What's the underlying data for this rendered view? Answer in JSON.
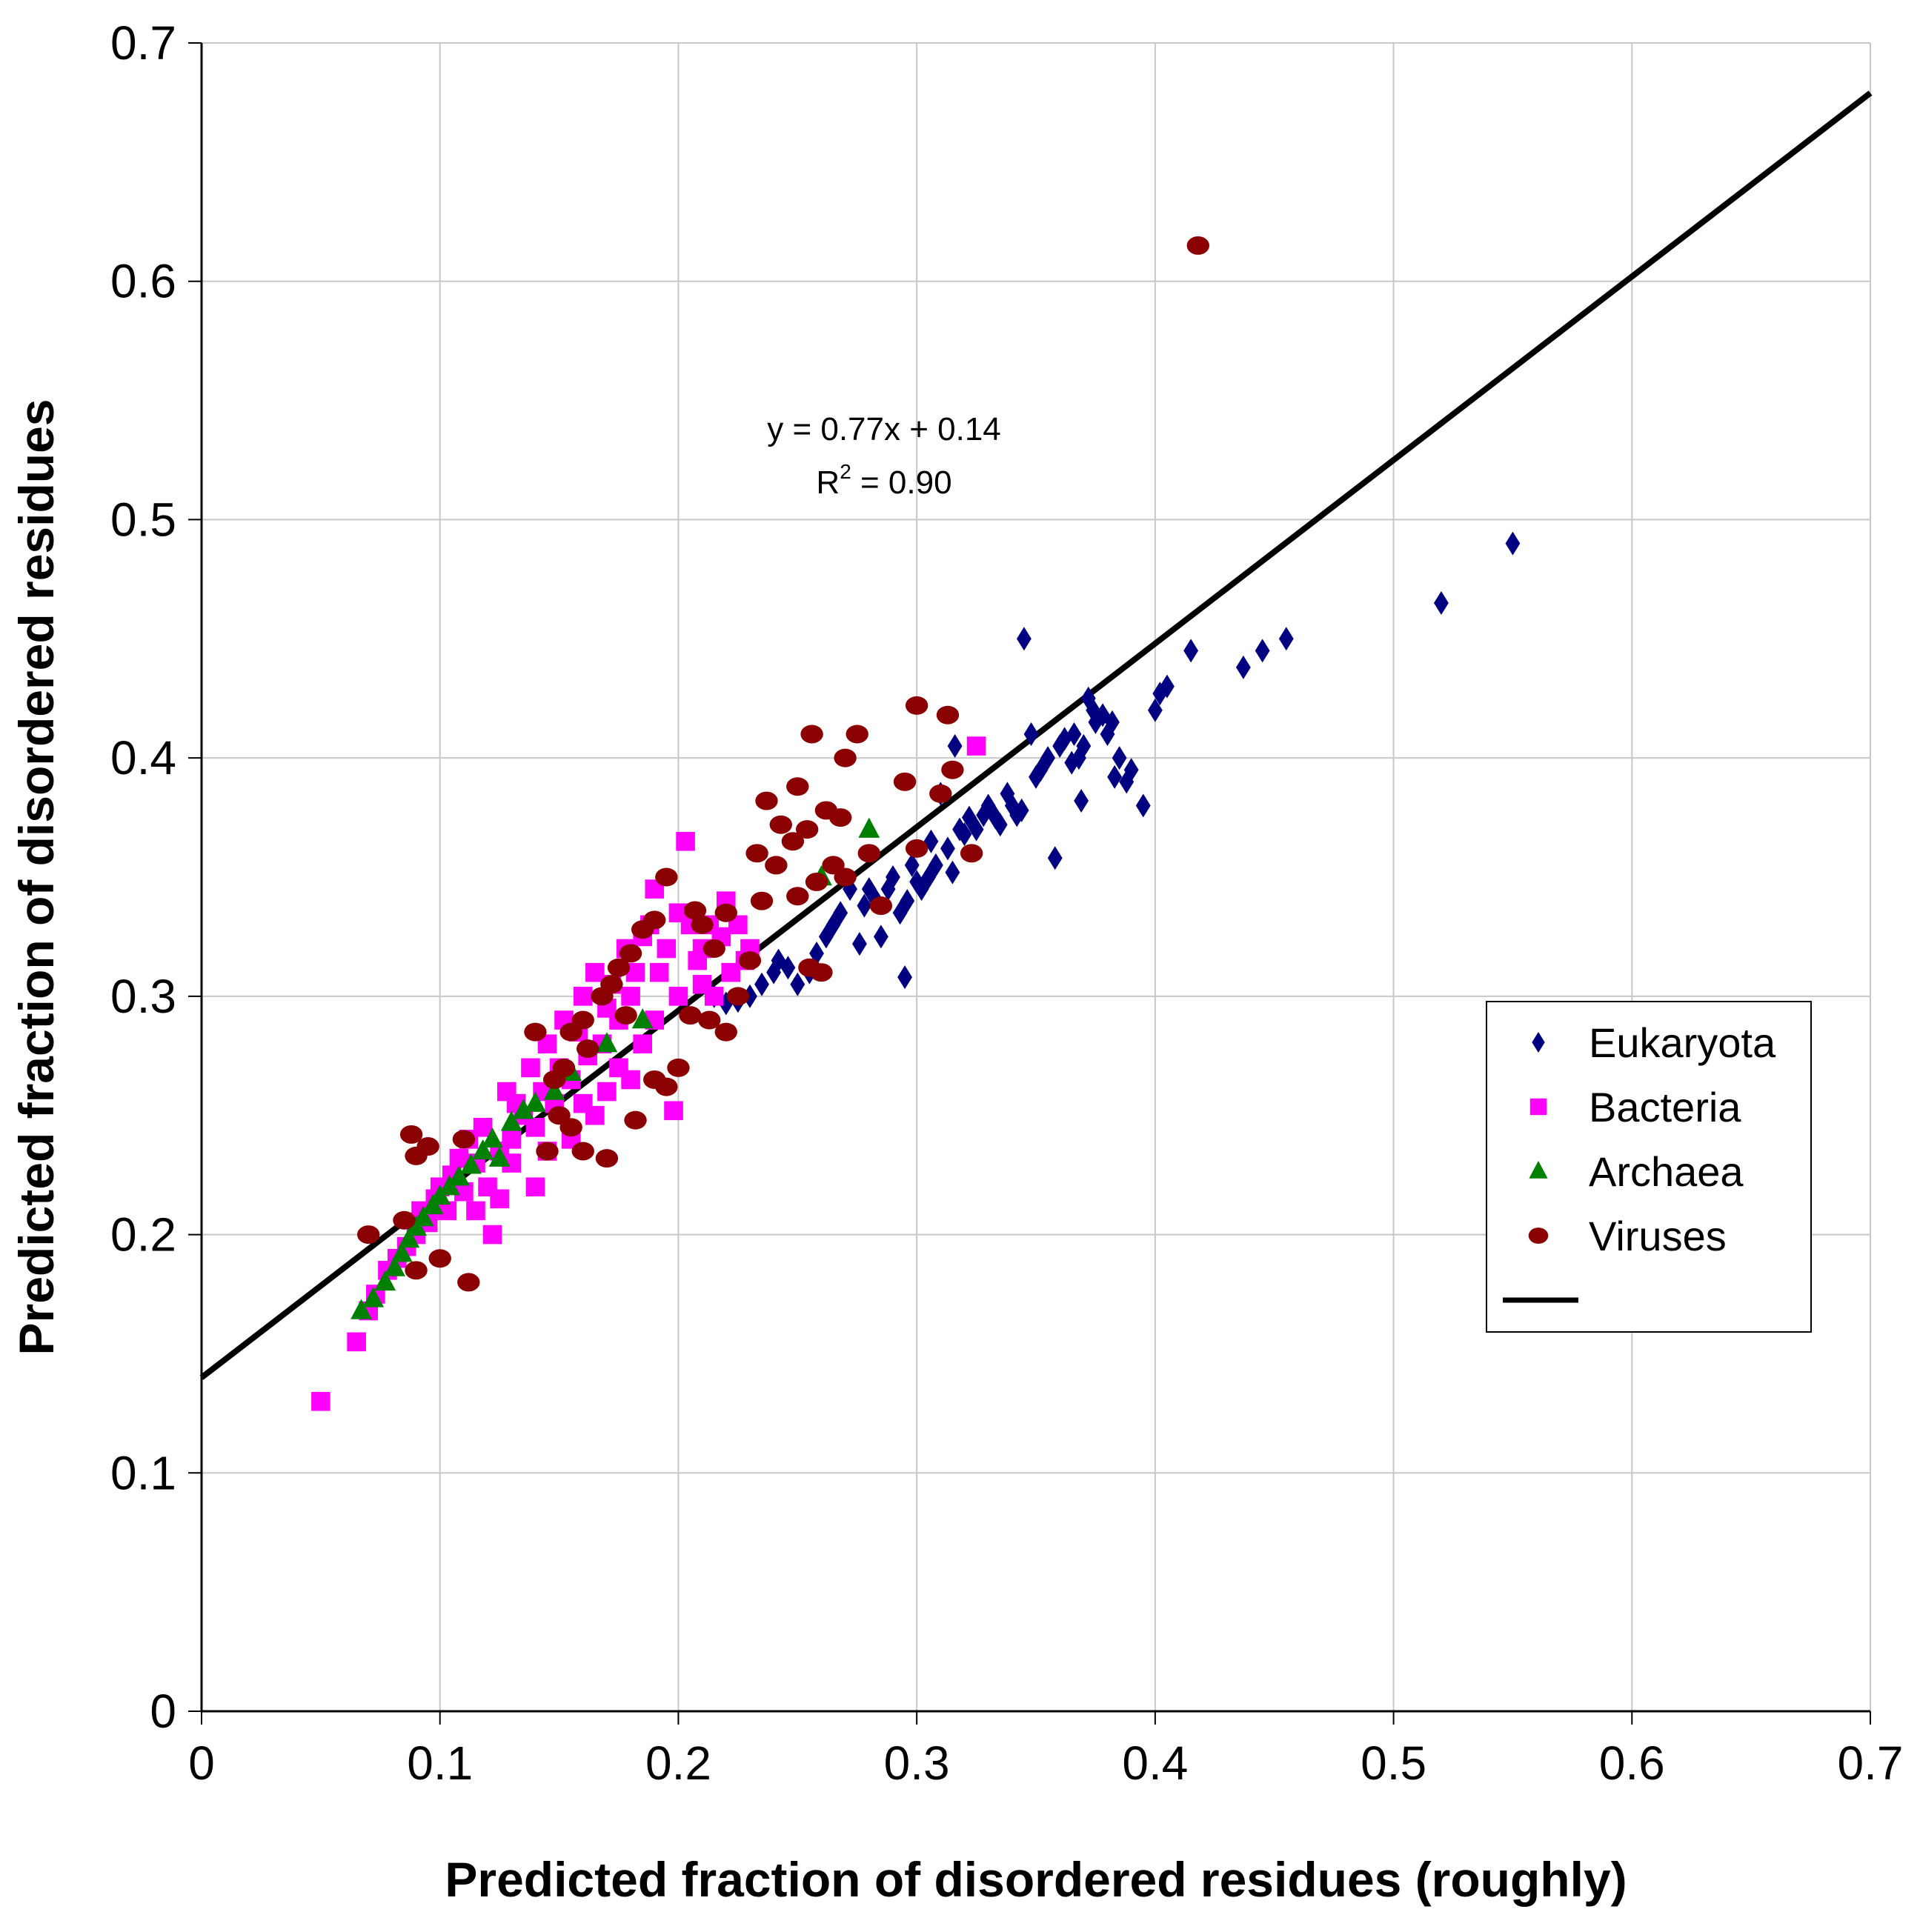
{
  "chart_data": {
    "type": "scatter",
    "title": "",
    "xlabel": "Predicted fraction of disordered residues (roughly)",
    "ylabel": "Predicted fraction of disordered residues",
    "xlim": [
      0,
      0.7
    ],
    "ylim": [
      0,
      0.7
    ],
    "x_ticks": [
      "0",
      "0.1",
      "0.2",
      "0.3",
      "0.4",
      "0.5",
      "0.6",
      "0.7"
    ],
    "y_ticks": [
      "0",
      "0.1",
      "0.2",
      "0.3",
      "0.4",
      "0.5",
      "0.6",
      "0.7"
    ],
    "grid": true,
    "legend_position": "right",
    "annotation": {
      "line1": "y = 0.77x + 0.14",
      "line2_prefix": "R",
      "line2_sup": "2",
      "line2_suffix": " = 0.90"
    },
    "trendline": {
      "slope": 0.77,
      "intercept": 0.14,
      "x_range": [
        0,
        0.7
      ],
      "color": "#000000"
    },
    "series": [
      {
        "name": "Eukaryota",
        "marker": "diamond",
        "color": "#000080",
        "points": [
          [
            0.55,
            0.49
          ],
          [
            0.52,
            0.465
          ],
          [
            0.455,
            0.45
          ],
          [
            0.445,
            0.445
          ],
          [
            0.437,
            0.438
          ],
          [
            0.415,
            0.445
          ],
          [
            0.405,
            0.43
          ],
          [
            0.402,
            0.427
          ],
          [
            0.4,
            0.42
          ],
          [
            0.395,
            0.38
          ],
          [
            0.39,
            0.395
          ],
          [
            0.388,
            0.39
          ],
          [
            0.385,
            0.4
          ],
          [
            0.383,
            0.392
          ],
          [
            0.382,
            0.415
          ],
          [
            0.38,
            0.41
          ],
          [
            0.378,
            0.418
          ],
          [
            0.375,
            0.415
          ],
          [
            0.374,
            0.42
          ],
          [
            0.372,
            0.425
          ],
          [
            0.37,
            0.405
          ],
          [
            0.369,
            0.382
          ],
          [
            0.368,
            0.4
          ],
          [
            0.366,
            0.41
          ],
          [
            0.365,
            0.398
          ],
          [
            0.362,
            0.408
          ],
          [
            0.36,
            0.405
          ],
          [
            0.358,
            0.358
          ],
          [
            0.355,
            0.4
          ],
          [
            0.352,
            0.395
          ],
          [
            0.35,
            0.392
          ],
          [
            0.348,
            0.41
          ],
          [
            0.345,
            0.45
          ],
          [
            0.344,
            0.378
          ],
          [
            0.342,
            0.376
          ],
          [
            0.34,
            0.38
          ],
          [
            0.338,
            0.385
          ],
          [
            0.335,
            0.372
          ],
          [
            0.333,
            0.375
          ],
          [
            0.33,
            0.38
          ],
          [
            0.328,
            0.376
          ],
          [
            0.325,
            0.37
          ],
          [
            0.322,
            0.375
          ],
          [
            0.32,
            0.368
          ],
          [
            0.318,
            0.37
          ],
          [
            0.316,
            0.405
          ],
          [
            0.315,
            0.352
          ],
          [
            0.313,
            0.362
          ],
          [
            0.31,
            0.385
          ],
          [
            0.308,
            0.355
          ],
          [
            0.306,
            0.365
          ],
          [
            0.305,
            0.35
          ],
          [
            0.302,
            0.345
          ],
          [
            0.3,
            0.348
          ],
          [
            0.298,
            0.355
          ],
          [
            0.296,
            0.34
          ],
          [
            0.295,
            0.308
          ],
          [
            0.293,
            0.335
          ],
          [
            0.29,
            0.35
          ],
          [
            0.288,
            0.345
          ],
          [
            0.285,
            0.325
          ],
          [
            0.283,
            0.34
          ],
          [
            0.28,
            0.345
          ],
          [
            0.278,
            0.338
          ],
          [
            0.276,
            0.322
          ],
          [
            0.272,
            0.345
          ],
          [
            0.268,
            0.335
          ],
          [
            0.265,
            0.33
          ],
          [
            0.262,
            0.325
          ],
          [
            0.258,
            0.318
          ],
          [
            0.255,
            0.31
          ],
          [
            0.25,
            0.305
          ],
          [
            0.246,
            0.312
          ],
          [
            0.242,
            0.315
          ],
          [
            0.24,
            0.31
          ],
          [
            0.235,
            0.305
          ],
          [
            0.23,
            0.3
          ],
          [
            0.225,
            0.298
          ],
          [
            0.22,
            0.297
          ],
          [
            0.215,
            0.3
          ]
        ]
      },
      {
        "name": "Bacteria",
        "marker": "square",
        "color": "#FF00FF",
        "points": [
          [
            0.05,
            0.13
          ],
          [
            0.065,
            0.155
          ],
          [
            0.07,
            0.168
          ],
          [
            0.073,
            0.175
          ],
          [
            0.078,
            0.185
          ],
          [
            0.082,
            0.19
          ],
          [
            0.086,
            0.195
          ],
          [
            0.09,
            0.2
          ],
          [
            0.092,
            0.21
          ],
          [
            0.095,
            0.205
          ],
          [
            0.098,
            0.215
          ],
          [
            0.1,
            0.22
          ],
          [
            0.103,
            0.21
          ],
          [
            0.105,
            0.225
          ],
          [
            0.108,
            0.232
          ],
          [
            0.11,
            0.218
          ],
          [
            0.112,
            0.24
          ],
          [
            0.115,
            0.23
          ],
          [
            0.118,
            0.245
          ],
          [
            0.12,
            0.22
          ],
          [
            0.122,
            0.2
          ],
          [
            0.125,
            0.235
          ],
          [
            0.128,
            0.26
          ],
          [
            0.13,
            0.24
          ],
          [
            0.132,
            0.255
          ],
          [
            0.135,
            0.25
          ],
          [
            0.138,
            0.27
          ],
          [
            0.14,
            0.245
          ],
          [
            0.143,
            0.26
          ],
          [
            0.145,
            0.28
          ],
          [
            0.148,
            0.255
          ],
          [
            0.15,
            0.27
          ],
          [
            0.152,
            0.29
          ],
          [
            0.155,
            0.265
          ],
          [
            0.158,
            0.285
          ],
          [
            0.16,
            0.3
          ],
          [
            0.162,
            0.275
          ],
          [
            0.165,
            0.31
          ],
          [
            0.168,
            0.28
          ],
          [
            0.17,
            0.295
          ],
          [
            0.172,
            0.305
          ],
          [
            0.175,
            0.29
          ],
          [
            0.178,
            0.32
          ],
          [
            0.18,
            0.3
          ],
          [
            0.182,
            0.31
          ],
          [
            0.185,
            0.325
          ],
          [
            0.188,
            0.33
          ],
          [
            0.19,
            0.345
          ],
          [
            0.192,
            0.31
          ],
          [
            0.195,
            0.32
          ],
          [
            0.198,
            0.252
          ],
          [
            0.2,
            0.335
          ],
          [
            0.203,
            0.365
          ],
          [
            0.205,
            0.33
          ],
          [
            0.208,
            0.315
          ],
          [
            0.21,
            0.32
          ],
          [
            0.213,
            0.33
          ],
          [
            0.215,
            0.3
          ],
          [
            0.218,
            0.325
          ],
          [
            0.22,
            0.34
          ],
          [
            0.222,
            0.31
          ],
          [
            0.225,
            0.33
          ],
          [
            0.228,
            0.315
          ],
          [
            0.23,
            0.32
          ],
          [
            0.325,
            0.405
          ],
          [
            0.13,
            0.23
          ],
          [
            0.14,
            0.22
          ],
          [
            0.155,
            0.24
          ],
          [
            0.16,
            0.255
          ],
          [
            0.17,
            0.26
          ],
          [
            0.175,
            0.27
          ],
          [
            0.185,
            0.28
          ],
          [
            0.19,
            0.29
          ],
          [
            0.2,
            0.3
          ],
          [
            0.21,
            0.305
          ],
          [
            0.115,
            0.21
          ],
          [
            0.125,
            0.215
          ],
          [
            0.145,
            0.235
          ],
          [
            0.165,
            0.25
          ],
          [
            0.18,
            0.265
          ]
        ]
      },
      {
        "name": "Archaea",
        "marker": "triangle",
        "color": "#008000",
        "points": [
          [
            0.067,
            0.168
          ],
          [
            0.072,
            0.173
          ],
          [
            0.077,
            0.18
          ],
          [
            0.081,
            0.186
          ],
          [
            0.084,
            0.192
          ],
          [
            0.087,
            0.198
          ],
          [
            0.09,
            0.203
          ],
          [
            0.093,
            0.207
          ],
          [
            0.097,
            0.212
          ],
          [
            0.1,
            0.216
          ],
          [
            0.104,
            0.22
          ],
          [
            0.108,
            0.224
          ],
          [
            0.113,
            0.229
          ],
          [
            0.118,
            0.235
          ],
          [
            0.122,
            0.24
          ],
          [
            0.125,
            0.232
          ],
          [
            0.13,
            0.247
          ],
          [
            0.135,
            0.252
          ],
          [
            0.14,
            0.255
          ],
          [
            0.148,
            0.26
          ],
          [
            0.155,
            0.268
          ],
          [
            0.17,
            0.28
          ],
          [
            0.185,
            0.29
          ],
          [
            0.26,
            0.35
          ],
          [
            0.28,
            0.37
          ]
        ]
      },
      {
        "name": "Viruses",
        "marker": "ellipse",
        "color": "#8B0000",
        "points": [
          [
            0.418,
            0.615
          ],
          [
            0.3,
            0.422
          ],
          [
            0.313,
            0.418
          ],
          [
            0.256,
            0.41
          ],
          [
            0.275,
            0.41
          ],
          [
            0.27,
            0.4
          ],
          [
            0.315,
            0.395
          ],
          [
            0.295,
            0.39
          ],
          [
            0.25,
            0.388
          ],
          [
            0.237,
            0.382
          ],
          [
            0.31,
            0.385
          ],
          [
            0.262,
            0.378
          ],
          [
            0.243,
            0.372
          ],
          [
            0.254,
            0.37
          ],
          [
            0.268,
            0.375
          ],
          [
            0.3,
            0.362
          ],
          [
            0.248,
            0.365
          ],
          [
            0.28,
            0.36
          ],
          [
            0.233,
            0.36
          ],
          [
            0.265,
            0.355
          ],
          [
            0.323,
            0.36
          ],
          [
            0.241,
            0.355
          ],
          [
            0.258,
            0.348
          ],
          [
            0.27,
            0.35
          ],
          [
            0.25,
            0.342
          ],
          [
            0.285,
            0.338
          ],
          [
            0.235,
            0.34
          ],
          [
            0.22,
            0.335
          ],
          [
            0.21,
            0.33
          ],
          [
            0.19,
            0.332
          ],
          [
            0.207,
            0.336
          ],
          [
            0.195,
            0.35
          ],
          [
            0.185,
            0.328
          ],
          [
            0.18,
            0.318
          ],
          [
            0.175,
            0.312
          ],
          [
            0.168,
            0.3
          ],
          [
            0.16,
            0.29
          ],
          [
            0.155,
            0.285
          ],
          [
            0.14,
            0.285
          ],
          [
            0.172,
            0.305
          ],
          [
            0.178,
            0.292
          ],
          [
            0.162,
            0.278
          ],
          [
            0.152,
            0.27
          ],
          [
            0.148,
            0.265
          ],
          [
            0.15,
            0.25
          ],
          [
            0.155,
            0.245
          ],
          [
            0.145,
            0.235
          ],
          [
            0.16,
            0.235
          ],
          [
            0.17,
            0.232
          ],
          [
            0.182,
            0.248
          ],
          [
            0.19,
            0.265
          ],
          [
            0.2,
            0.27
          ],
          [
            0.205,
            0.292
          ],
          [
            0.213,
            0.29
          ],
          [
            0.22,
            0.285
          ],
          [
            0.225,
            0.3
          ],
          [
            0.215,
            0.32
          ],
          [
            0.23,
            0.315
          ],
          [
            0.255,
            0.312
          ],
          [
            0.26,
            0.31
          ],
          [
            0.11,
            0.24
          ],
          [
            0.088,
            0.242
          ],
          [
            0.09,
            0.233
          ],
          [
            0.095,
            0.237
          ],
          [
            0.07,
            0.2
          ],
          [
            0.085,
            0.206
          ],
          [
            0.1,
            0.19
          ],
          [
            0.112,
            0.18
          ],
          [
            0.09,
            0.185
          ],
          [
            0.195,
            0.262
          ]
        ]
      }
    ]
  }
}
